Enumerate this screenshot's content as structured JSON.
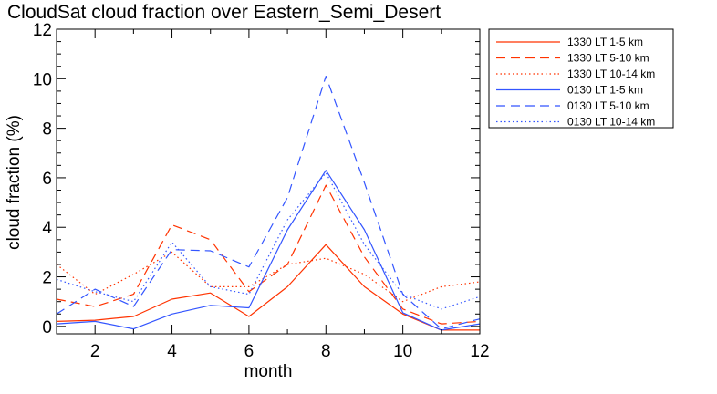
{
  "chart_data": {
    "type": "line",
    "title": "CloudSat cloud fraction over Eastern_Semi_Desert",
    "xlabel": "month",
    "ylabel": "cloud fraction (%)",
    "xlim": [
      1,
      12
    ],
    "ylim": [
      -0.3,
      12
    ],
    "xticks": [
      2,
      4,
      6,
      8,
      10,
      12
    ],
    "yticks": [
      0,
      2,
      4,
      6,
      8,
      10,
      12
    ],
    "x": [
      1,
      2,
      3,
      4,
      5,
      6,
      7,
      8,
      9,
      10,
      11,
      12
    ],
    "legend_position": "outside-right",
    "series": [
      {
        "name": "1330 LT 1-5 km",
        "color": "#ff3300",
        "dash": "solid",
        "values": [
          0.2,
          0.25,
          0.4,
          1.1,
          1.35,
          0.4,
          1.6,
          3.3,
          1.6,
          0.5,
          -0.15,
          -0.15
        ]
      },
      {
        "name": "1330 LT 5-10 km",
        "color": "#ff3300",
        "dash": "dashed",
        "values": [
          1.1,
          0.8,
          1.3,
          4.1,
          3.5,
          1.4,
          2.5,
          5.7,
          2.8,
          0.7,
          0.1,
          0.2
        ]
      },
      {
        "name": "1330 LT 10-14 km",
        "color": "#ff3300",
        "dash": "dotted",
        "values": [
          2.5,
          1.3,
          2.1,
          3.0,
          1.6,
          1.6,
          2.5,
          2.75,
          2.1,
          1.0,
          1.6,
          1.8
        ]
      },
      {
        "name": "0130 LT 1-5 km",
        "color": "#3355ff",
        "dash": "solid",
        "values": [
          0.1,
          0.2,
          -0.1,
          0.5,
          0.85,
          0.75,
          3.9,
          6.3,
          3.9,
          0.55,
          -0.15,
          0.1
        ]
      },
      {
        "name": "0130 LT 5-10 km",
        "color": "#3355ff",
        "dash": "dashed",
        "values": [
          0.5,
          1.5,
          0.8,
          3.1,
          3.05,
          2.4,
          5.2,
          10.1,
          5.8,
          1.3,
          -0.1,
          0.3
        ]
      },
      {
        "name": "0130 LT 10-14 km",
        "color": "#3355ff",
        "dash": "dotted",
        "values": [
          1.9,
          1.4,
          1.0,
          3.4,
          1.6,
          1.3,
          4.3,
          6.2,
          3.3,
          1.3,
          0.7,
          1.2
        ]
      }
    ]
  }
}
